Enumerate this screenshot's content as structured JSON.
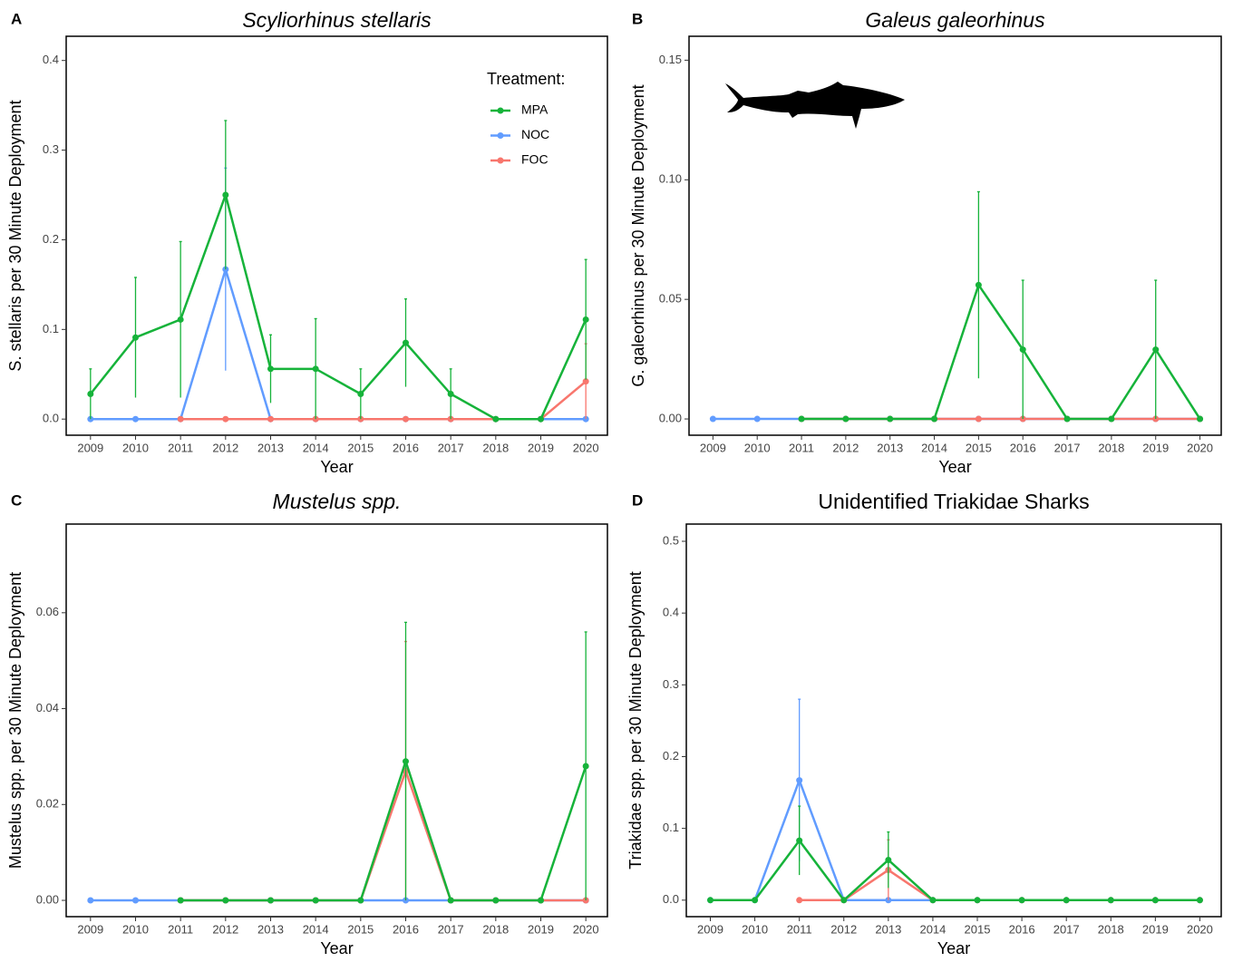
{
  "chart_data": [
    {
      "type": "line",
      "panel": "A",
      "title": "Scyliorhinus stellaris",
      "title_italic": true,
      "x_label": "Year",
      "y_label": "S. stellaris per 30 Minute Deployment",
      "x": [
        2009,
        2010,
        2011,
        2012,
        2013,
        2014,
        2015,
        2016,
        2017,
        2018,
        2019,
        2020
      ],
      "xlim": [
        2008.46,
        2020.48
      ],
      "xticks": [
        2009,
        2010,
        2011,
        2012,
        2013,
        2014,
        2015,
        2016,
        2017,
        2018,
        2019,
        2020
      ],
      "ylim": [
        -0.018,
        0.427
      ],
      "yticks": [
        {
          "value": 0,
          "label": "0.0"
        },
        {
          "value": 0.1,
          "label": "0.1"
        },
        {
          "value": 0.2,
          "label": "0.2"
        },
        {
          "value": 0.3,
          "label": "0.3"
        },
        {
          "value": 0.4,
          "label": "0.4"
        }
      ],
      "legend": true,
      "legend_title": "Treatment:",
      "series": [
        {
          "name": "MPA",
          "color": "#16b33a",
          "values": [
            0.028,
            0.091,
            0.111,
            0.25,
            0.056,
            0.056,
            0.028,
            0.085,
            0.028,
            0,
            0,
            0.111
          ],
          "errors": [
            0.028,
            0.067,
            0.087,
            0.083,
            0.038,
            0.056,
            0.028,
            0.049,
            0.028,
            null,
            null,
            0.067
          ]
        },
        {
          "name": "NOC",
          "color": "#619cff",
          "values": [
            0,
            0,
            0,
            0.167,
            0,
            0,
            0,
            0,
            0,
            0,
            0,
            0
          ],
          "errors": [
            null,
            null,
            null,
            0.113,
            null,
            null,
            null,
            null,
            null,
            null,
            null,
            null
          ]
        },
        {
          "name": "FOC",
          "color": "#f8766d",
          "values": [
            null,
            null,
            0,
            0,
            0,
            0,
            0,
            0,
            0,
            0,
            0,
            0.042
          ],
          "errors": [
            null,
            null,
            null,
            null,
            null,
            null,
            null,
            null,
            null,
            null,
            null,
            0.042
          ]
        }
      ]
    },
    {
      "type": "line",
      "panel": "B",
      "title": "Galeus galeorhinus",
      "title_italic": true,
      "x_label": "Year",
      "y_label": "G. galeorhinus per 30 Minute Deployment",
      "x": [
        2009,
        2010,
        2011,
        2012,
        2013,
        2014,
        2015,
        2016,
        2017,
        2018,
        2019,
        2020
      ],
      "xlim": [
        2008.46,
        2020.48
      ],
      "xticks": [
        2009,
        2010,
        2011,
        2012,
        2013,
        2014,
        2015,
        2016,
        2017,
        2018,
        2019,
        2020
      ],
      "ylim": [
        -0.0068,
        0.16
      ],
      "yticks": [
        {
          "value": 0,
          "label": "0.00"
        },
        {
          "value": 0.05,
          "label": "0.05"
        },
        {
          "value": 0.1,
          "label": "0.10"
        },
        {
          "value": 0.15,
          "label": "0.15"
        }
      ],
      "legend": false,
      "series": [
        {
          "color": "#16b33a",
          "values": [
            null,
            null,
            0,
            0,
            0,
            0,
            0.056,
            0.029,
            0,
            0,
            0.029,
            0
          ],
          "errors": [
            null,
            null,
            null,
            null,
            null,
            null,
            0.039,
            0.029,
            null,
            null,
            0.029,
            null
          ]
        },
        {
          "color": "#619cff",
          "values": [
            0,
            0,
            0,
            0,
            0,
            0,
            0,
            0,
            0,
            0,
            0,
            0
          ],
          "errors": [
            null,
            null,
            null,
            null,
            null,
            null,
            null,
            null,
            null,
            null,
            null,
            null
          ]
        },
        {
          "color": "#f8766d",
          "values": [
            null,
            null,
            0,
            0,
            0,
            0,
            0,
            0,
            0,
            0,
            0,
            0
          ],
          "errors": [
            null,
            null,
            null,
            null,
            null,
            null,
            null,
            null,
            null,
            null,
            null,
            null
          ]
        }
      ]
    },
    {
      "type": "line",
      "panel": "C",
      "title": "Mustelus spp.",
      "title_italic": true,
      "x_label": "Year",
      "y_label": "Mustelus spp. per 30 Minute Deployment",
      "x": [
        2009,
        2010,
        2011,
        2012,
        2013,
        2014,
        2015,
        2016,
        2017,
        2018,
        2019,
        2020
      ],
      "xlim": [
        2008.46,
        2020.48
      ],
      "xticks": [
        2009,
        2010,
        2011,
        2012,
        2013,
        2014,
        2015,
        2016,
        2017,
        2018,
        2019,
        2020
      ],
      "ylim": [
        -0.0034,
        0.0785
      ],
      "yticks": [
        {
          "value": 0,
          "label": "0.00"
        },
        {
          "value": 0.02,
          "label": "0.02"
        },
        {
          "value": 0.04,
          "label": "0.04"
        },
        {
          "value": 0.06,
          "label": "0.06"
        }
      ],
      "legend": false,
      "series": [
        {
          "color": "#16b33a",
          "values": [
            null,
            null,
            0,
            0,
            0,
            0,
            0,
            0.029,
            0,
            0,
            0,
            0.028
          ],
          "errors": [
            null,
            null,
            null,
            null,
            null,
            null,
            null,
            0.029,
            null,
            null,
            null,
            0.028
          ]
        },
        {
          "color": "#619cff",
          "values": [
            0,
            0,
            0,
            0,
            0,
            0,
            0,
            0,
            0,
            0,
            0,
            0
          ],
          "errors": [
            null,
            null,
            null,
            null,
            null,
            null,
            null,
            null,
            null,
            null,
            null,
            null
          ]
        },
        {
          "color": "#f8766d",
          "values": [
            null,
            null,
            0,
            0,
            0,
            0,
            0,
            0.027,
            0,
            0,
            0,
            0
          ],
          "errors": [
            null,
            null,
            null,
            null,
            null,
            null,
            null,
            0.027,
            null,
            null,
            null,
            null
          ]
        }
      ]
    },
    {
      "type": "line",
      "panel": "D",
      "title": "Unidentified Triakidae Sharks",
      "title_italic": false,
      "x_label": "Year",
      "y_label": "Triakidae spp. per 30 Minute Deployment",
      "x": [
        2009,
        2010,
        2011,
        2012,
        2013,
        2014,
        2015,
        2016,
        2017,
        2018,
        2019,
        2020
      ],
      "xlim": [
        2008.46,
        2020.48
      ],
      "xticks": [
        2009,
        2010,
        2011,
        2012,
        2013,
        2014,
        2015,
        2016,
        2017,
        2018,
        2019,
        2020
      ],
      "ylim": [
        -0.023,
        0.524
      ],
      "yticks": [
        {
          "value": 0,
          "label": "0.0"
        },
        {
          "value": 0.1,
          "label": "0.1"
        },
        {
          "value": 0.2,
          "label": "0.2"
        },
        {
          "value": 0.3,
          "label": "0.3"
        },
        {
          "value": 0.4,
          "label": "0.4"
        },
        {
          "value": 0.5,
          "label": "0.5"
        }
      ],
      "legend": false,
      "series": [
        {
          "color": "#16b33a",
          "values": [
            0,
            0,
            0.083,
            0,
            0.056,
            0,
            0,
            0,
            0,
            0,
            0,
            0
          ],
          "errors": [
            null,
            null,
            0.048,
            null,
            0.039,
            null,
            null,
            null,
            null,
            null,
            null,
            null
          ]
        },
        {
          "color": "#619cff",
          "values": [
            0,
            0,
            0.167,
            0,
            0,
            0,
            0,
            0,
            0,
            0,
            0,
            0
          ],
          "errors": [
            null,
            null,
            0.113,
            null,
            null,
            null,
            null,
            null,
            null,
            null,
            null,
            null
          ]
        },
        {
          "color": "#f8766d",
          "values": [
            null,
            null,
            0,
            0,
            0.042,
            0,
            0,
            0,
            0,
            0,
            0,
            0
          ],
          "errors": [
            null,
            null,
            null,
            null,
            0.042,
            null,
            null,
            null,
            null,
            null,
            null,
            null
          ]
        }
      ]
    }
  ]
}
